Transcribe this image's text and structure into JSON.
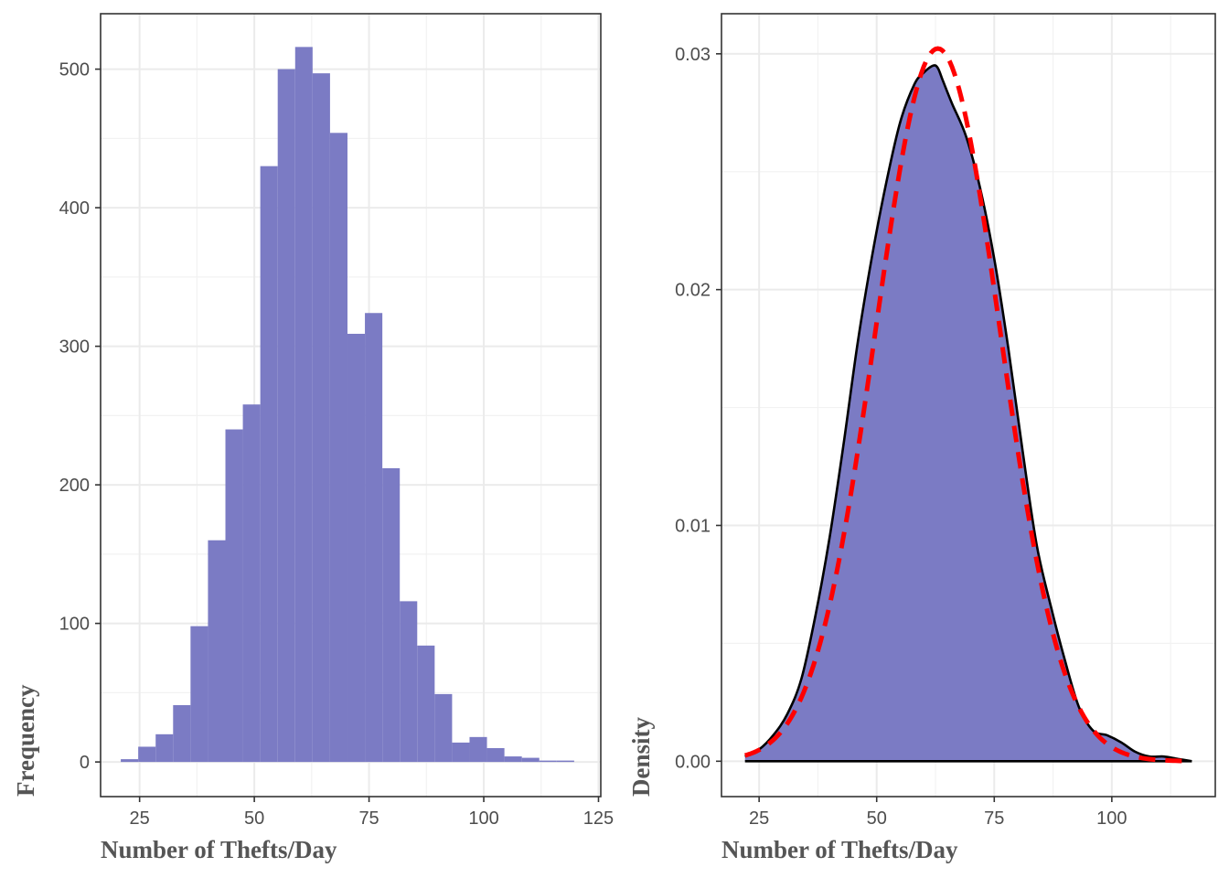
{
  "chart_data": [
    {
      "type": "bar",
      "subtype": "histogram",
      "xlabel": "Number of Thefts/Day",
      "ylabel": "Frequency",
      "xlim": [
        16.5,
        125.5
      ],
      "ylim": [
        -25,
        540
      ],
      "xticks": [
        25,
        50,
        75,
        100,
        125
      ],
      "xtick_labels": [
        "25",
        "50",
        "75",
        "100",
        "125"
      ],
      "yticks": [
        0,
        100,
        200,
        300,
        400,
        500
      ],
      "ytick_labels": [
        "0",
        "100",
        "200",
        "300",
        "400",
        "500"
      ],
      "bin_width": 3.8,
      "bin_starts": [
        20.9,
        24.7,
        28.5,
        32.3,
        36.1,
        39.9,
        43.7,
        47.5,
        51.3,
        55.1,
        58.9,
        62.7,
        66.5,
        70.3,
        74.1,
        77.9,
        81.7,
        85.5,
        89.3,
        93.1,
        96.9,
        100.7,
        104.5,
        108.3,
        112.1,
        115.9
      ],
      "values": [
        2,
        11,
        20,
        41,
        98,
        160,
        240,
        258,
        430,
        500,
        516,
        497,
        454,
        309,
        324,
        212,
        116,
        84,
        49,
        14,
        18,
        10,
        4,
        3,
        1,
        1
      ],
      "fill_color": "#7b7bc4",
      "grid": true
    },
    {
      "type": "area",
      "subtype": "density",
      "xlabel": "Number of Thefts/Day",
      "ylabel": "Density",
      "xlim": [
        17,
        122
      ],
      "ylim": [
        -0.0015,
        0.0317
      ],
      "xticks": [
        25,
        50,
        75,
        100
      ],
      "xtick_labels": [
        "25",
        "50",
        "75",
        "100"
      ],
      "yticks": [
        0,
        0.01,
        0.02,
        0.03
      ],
      "ytick_labels": [
        "0.00",
        "0.01",
        "0.02",
        "0.03"
      ],
      "series": [
        {
          "kind": "kernel-density",
          "line_color": "#000000",
          "fill_color": "#7b7bc4",
          "x": [
            22,
            25,
            28,
            31,
            34,
            37,
            40,
            43,
            46,
            49,
            52,
            55,
            58,
            60,
            62,
            63,
            64,
            66,
            69,
            72,
            75,
            78,
            81,
            84,
            87,
            90,
            93,
            96,
            99,
            102,
            105,
            108,
            111,
            114,
            117
          ],
          "y": [
            0.0002,
            0.0005,
            0.0011,
            0.002,
            0.0035,
            0.0062,
            0.0095,
            0.0135,
            0.0178,
            0.0214,
            0.0245,
            0.0271,
            0.0287,
            0.0292,
            0.0295,
            0.0294,
            0.0289,
            0.0279,
            0.0265,
            0.0243,
            0.0213,
            0.0175,
            0.0132,
            0.0092,
            0.0066,
            0.0043,
            0.0023,
            0.0013,
            0.0011,
            0.0008,
            0.0004,
            0.0002,
            0.0002,
            0.0001,
            0.0
          ]
        },
        {
          "kind": "normal-fit",
          "line_color": "#ff0000",
          "dashed": true,
          "mean": 63,
          "sd": 13.2,
          "x_range": [
            22,
            117
          ]
        }
      ],
      "grid": true
    }
  ]
}
